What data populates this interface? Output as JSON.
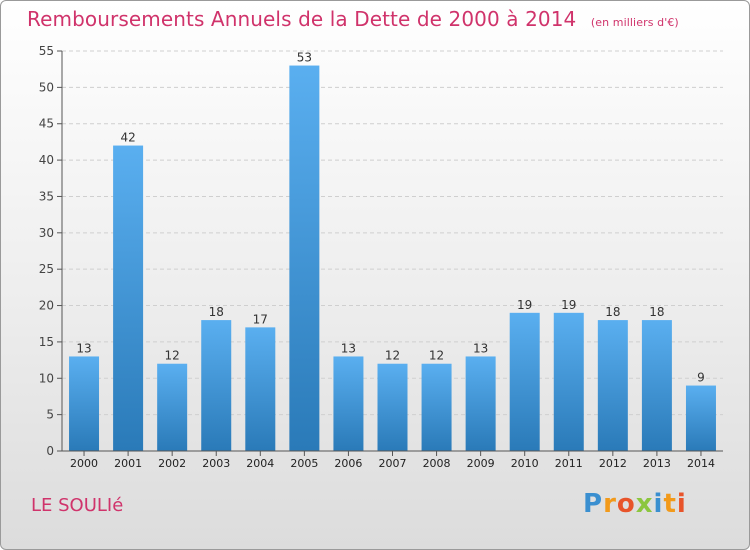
{
  "header": {
    "title": "Remboursements Annuels de la Dette de 2000 à 2014",
    "subtitle": "(en milliers d'€)"
  },
  "footer": {
    "commune": "LE SOULIé",
    "brand": [
      "P",
      "r",
      "o",
      "x",
      "i",
      "t",
      "i"
    ]
  },
  "colors": {
    "title": "#d0336b",
    "bar_top": "#5aaff0",
    "bar_bottom": "#2a7ab8"
  },
  "chart_data": {
    "type": "bar",
    "categories": [
      "2000",
      "2001",
      "2002",
      "2003",
      "2004",
      "2005",
      "2006",
      "2007",
      "2008",
      "2009",
      "2010",
      "2011",
      "2012",
      "2013",
      "2014"
    ],
    "values": [
      13,
      42,
      12,
      18,
      17,
      53,
      13,
      12,
      12,
      13,
      19,
      19,
      18,
      18,
      9
    ],
    "yticks": [
      0,
      5,
      10,
      15,
      20,
      25,
      30,
      35,
      40,
      45,
      50,
      55
    ],
    "ylim": [
      0,
      55
    ],
    "grid": true,
    "data_labels": true
  }
}
